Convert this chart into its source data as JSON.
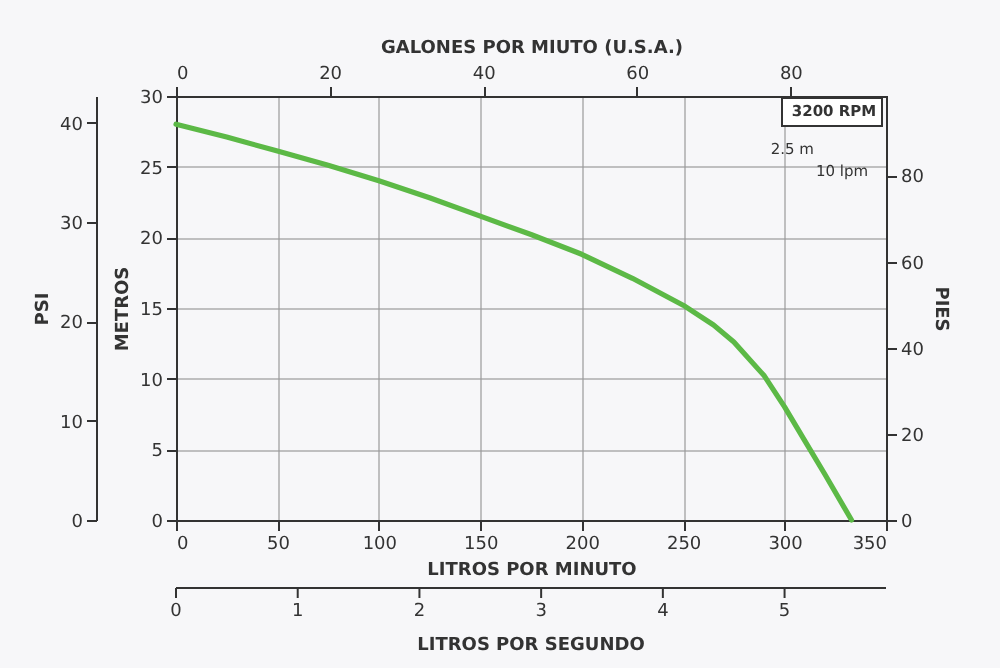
{
  "chart_data": {
    "type": "line",
    "xlabel": "LITROS POR MINUTO",
    "ylabel": "METROS",
    "x2label": "GALONES POR MIUTO (U.S.A.)",
    "y2label": "PIES",
    "y3label": "PSI",
    "x": [
      0,
      25,
      50,
      75,
      100,
      125,
      150,
      175,
      200,
      225,
      250,
      265,
      275,
      290,
      300,
      310,
      320,
      333
    ],
    "series": [
      {
        "color": "#5cb946",
        "values": [
          28,
          27.1,
          26.1,
          25.1,
          24,
          22.8,
          21.5,
          20.2,
          18.8,
          17.1,
          15.2,
          13.8,
          12.6,
          10.2,
          8,
          5.6,
          3.2,
          0
        ]
      }
    ],
    "xlim": [
      0,
      350
    ],
    "xticks": [
      0,
      50,
      100,
      150,
      200,
      250,
      300,
      350
    ],
    "ylim": [
      0,
      30
    ],
    "yticks": [
      0,
      5,
      10,
      15,
      20,
      25,
      30
    ],
    "x2lim": [
      0,
      92.46
    ],
    "x2ticks": [
      0,
      20,
      40,
      60,
      80
    ],
    "y2lim": [
      0,
      98.43
    ],
    "y2ticks": [
      0,
      20,
      40,
      60,
      80
    ],
    "y3lim": [
      0,
      42.67
    ],
    "y3ticks": [
      0,
      10,
      20,
      30,
      40
    ],
    "grid": true,
    "line_style": "solid",
    "marker": "none",
    "annotations": [
      "3200 RPM",
      "2.5 m",
      "10 lpm",
      "LITROS POR SEGUNDO",
      "0",
      "1",
      "2",
      "3",
      "4",
      "5"
    ]
  }
}
